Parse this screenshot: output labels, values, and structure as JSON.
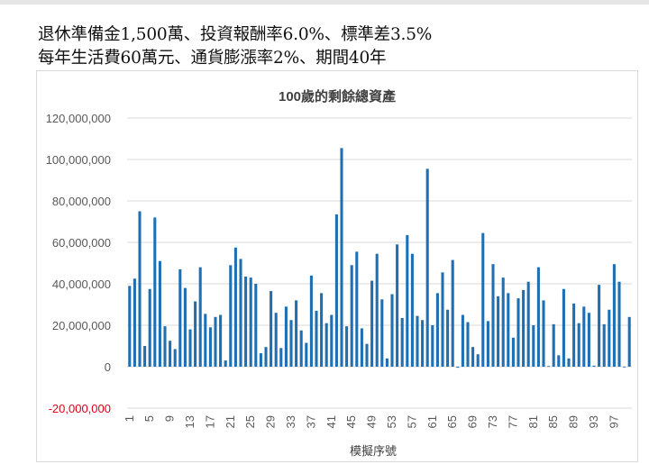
{
  "header": {
    "line1": "退休準備金1,500萬、投資報酬率6.0%、標準差3.5%",
    "line2": "每年生活費60萬元、通貨膨漲率2%、期間40年"
  },
  "chart_data": {
    "type": "bar",
    "title": "100歲的剩餘總資產",
    "xlabel": "模擬序號",
    "ylabel": "",
    "ylim": [
      -20000000,
      120000000
    ],
    "y_ticks": [
      {
        "value": -20000000,
        "label": "-20,000,000"
      },
      {
        "value": 0,
        "label": "0"
      },
      {
        "value": 20000000,
        "label": "20,000,000"
      },
      {
        "value": 40000000,
        "label": "40,000,000"
      },
      {
        "value": 60000000,
        "label": "60,000,000"
      },
      {
        "value": 80000000,
        "label": "80,000,000"
      },
      {
        "value": 100000000,
        "label": "100,000,000"
      },
      {
        "value": 120000000,
        "label": "120,000,000"
      }
    ],
    "x_tick_labels": [
      "1",
      "5",
      "9",
      "13",
      "17",
      "21",
      "25",
      "29",
      "33",
      "37",
      "41",
      "45",
      "49",
      "53",
      "57",
      "61",
      "65",
      "69",
      "73",
      "77",
      "81",
      "85",
      "89",
      "93",
      "97"
    ],
    "series_color": "#1f6fb2",
    "negative_label_color": "#e0001b",
    "grid": true,
    "values": [
      39000000,
      42500000,
      75000000,
      10000000,
      37500000,
      72000000,
      51000000,
      19500000,
      12500000,
      8500000,
      47000000,
      38000000,
      18000000,
      31500000,
      48000000,
      25500000,
      19000000,
      24000000,
      25000000,
      3000000,
      49000000,
      57500000,
      52000000,
      43500000,
      43000000,
      40000000,
      6500000,
      9500000,
      36500000,
      26000000,
      9000000,
      29000000,
      22500000,
      32000000,
      17500000,
      11500000,
      44000000,
      27000000,
      35500000,
      21000000,
      25000000,
      73500000,
      105500000,
      19500000,
      49000000,
      55500000,
      18500000,
      11000000,
      41500000,
      54500000,
      32500000,
      4000000,
      35000000,
      59000000,
      23500000,
      63500000,
      54500000,
      24500000,
      22500000,
      95500000,
      20000000,
      35500000,
      45500000,
      27500000,
      51500000,
      -500000,
      25000000,
      21500000,
      9500000,
      6000000,
      64500000,
      22000000,
      49500000,
      34000000,
      43000000,
      35500000,
      14000000,
      33000000,
      37000000,
      41000000,
      20000000,
      48000000,
      32000000,
      300000,
      20500000,
      5500000,
      37500000,
      4000000,
      30500000,
      21000000,
      29000000,
      26000000,
      500000,
      39500000,
      20500000,
      27500000,
      49500000,
      41000000,
      -300000,
      24000000
    ]
  }
}
